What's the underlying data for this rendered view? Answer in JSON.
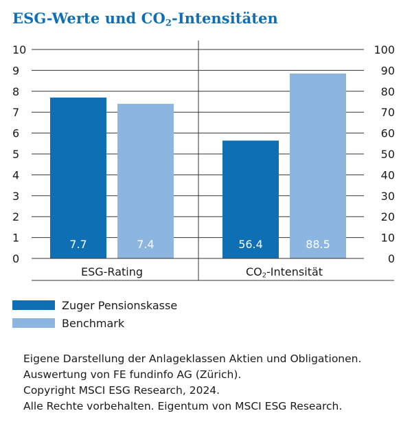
{
  "title": {
    "prefix": "ESG-Werte und CO",
    "sub": "2",
    "suffix": "-Intensitäten"
  },
  "chart_data": {
    "type": "bar",
    "series": [
      {
        "name": "Zuger Pensionskasse",
        "color": "#0f6fb5"
      },
      {
        "name": "Benchmark",
        "color": "#8cb6df"
      }
    ],
    "groups": [
      {
        "label_prefix": "ESG-Rating",
        "label_sub": "",
        "label_suffix": "",
        "axis": "left",
        "values": [
          7.7,
          7.4
        ],
        "value_labels": [
          "7.7",
          "7.4"
        ]
      },
      {
        "label_prefix": "CO",
        "label_sub": "2",
        "label_suffix": "-Intensität",
        "axis": "right",
        "values": [
          56.4,
          88.5
        ],
        "value_labels": [
          "56.4",
          "88.5"
        ]
      }
    ],
    "left_axis": {
      "min": 0,
      "max": 10,
      "step": 1,
      "ticks": [
        "0",
        "1",
        "2",
        "3",
        "4",
        "5",
        "6",
        "7",
        "8",
        "9",
        "10"
      ]
    },
    "right_axis": {
      "min": 0,
      "max": 100,
      "step": 10,
      "ticks": [
        "0",
        "10",
        "20",
        "30",
        "40",
        "50",
        "60",
        "70",
        "80",
        "90",
        "100"
      ]
    },
    "grid": true
  },
  "legend": [
    {
      "label": "Zuger Pensionskasse",
      "color": "#0f6fb5"
    },
    {
      "label": "Benchmark",
      "color": "#8cb6df"
    }
  ],
  "source_lines": [
    "Eigene Darstellung der Anlageklassen Aktien und Obligationen.",
    "Auswertung von FE fundinfo AG (Zürich).",
    "Copyright MSCI ESG Research, 2024.",
    "Alle Rechte vorbehalten. Eigentum von MSCI ESG Research."
  ]
}
